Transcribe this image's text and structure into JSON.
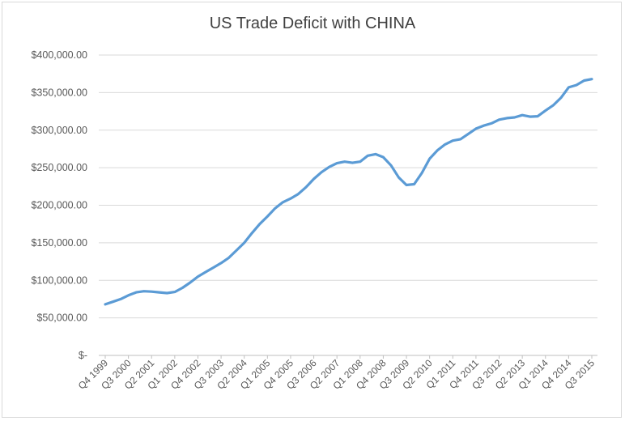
{
  "chart_data": {
    "type": "line",
    "title": "US Trade Deficit with CHINA",
    "xlabel": "",
    "ylabel": "",
    "ylim": [
      0,
      400000
    ],
    "y_tick_values": [
      0,
      50000,
      100000,
      150000,
      200000,
      250000,
      300000,
      350000,
      400000
    ],
    "y_tick_labels": [
      "$-",
      "$50,000.00",
      "$100,000.00",
      "$150,000.00",
      "$200,000.00",
      "$250,000.00",
      "$300,000.00",
      "$350,000.00",
      "$400,000.00"
    ],
    "grid": true,
    "legend": "none",
    "x_tick_labels": [
      "Q4 1999",
      "Q3 2000",
      "Q2 2001",
      "Q1 2002",
      "Q4 2002",
      "Q3 2003",
      "Q2 2004",
      "Q1 2005",
      "Q4 2005",
      "Q3 2006",
      "Q2 2007",
      "Q1 2008",
      "Q4 2008",
      "Q3 2009",
      "Q2 2010",
      "Q1 2011",
      "Q4 2011",
      "Q3 2012",
      "Q2 2013",
      "Q1 2014",
      "Q4 2014",
      "Q3 2015"
    ],
    "x_tick_every": 3,
    "line_color": "#5b9bd5",
    "series": [
      {
        "values": [
          68000,
          71500,
          75000,
          80000,
          84000,
          85500,
          85000,
          84000,
          83000,
          84500,
          90000,
          97000,
          105000,
          111000,
          117000,
          123000,
          130000,
          140000,
          150000,
          163000,
          175000,
          185000,
          196000,
          204000,
          209000,
          215000,
          224000,
          235000,
          244000,
          251000,
          256000,
          258000,
          256500,
          258000,
          266000,
          268000,
          264000,
          253000,
          237000,
          227000,
          228000,
          243000,
          262000,
          273000,
          281000,
          286000,
          288000,
          295000,
          302000,
          306000,
          309000,
          314000,
          316000,
          317000,
          320000,
          318000,
          318500,
          326000,
          333000,
          343000,
          357000,
          360000,
          366000,
          368000
        ]
      }
    ]
  }
}
